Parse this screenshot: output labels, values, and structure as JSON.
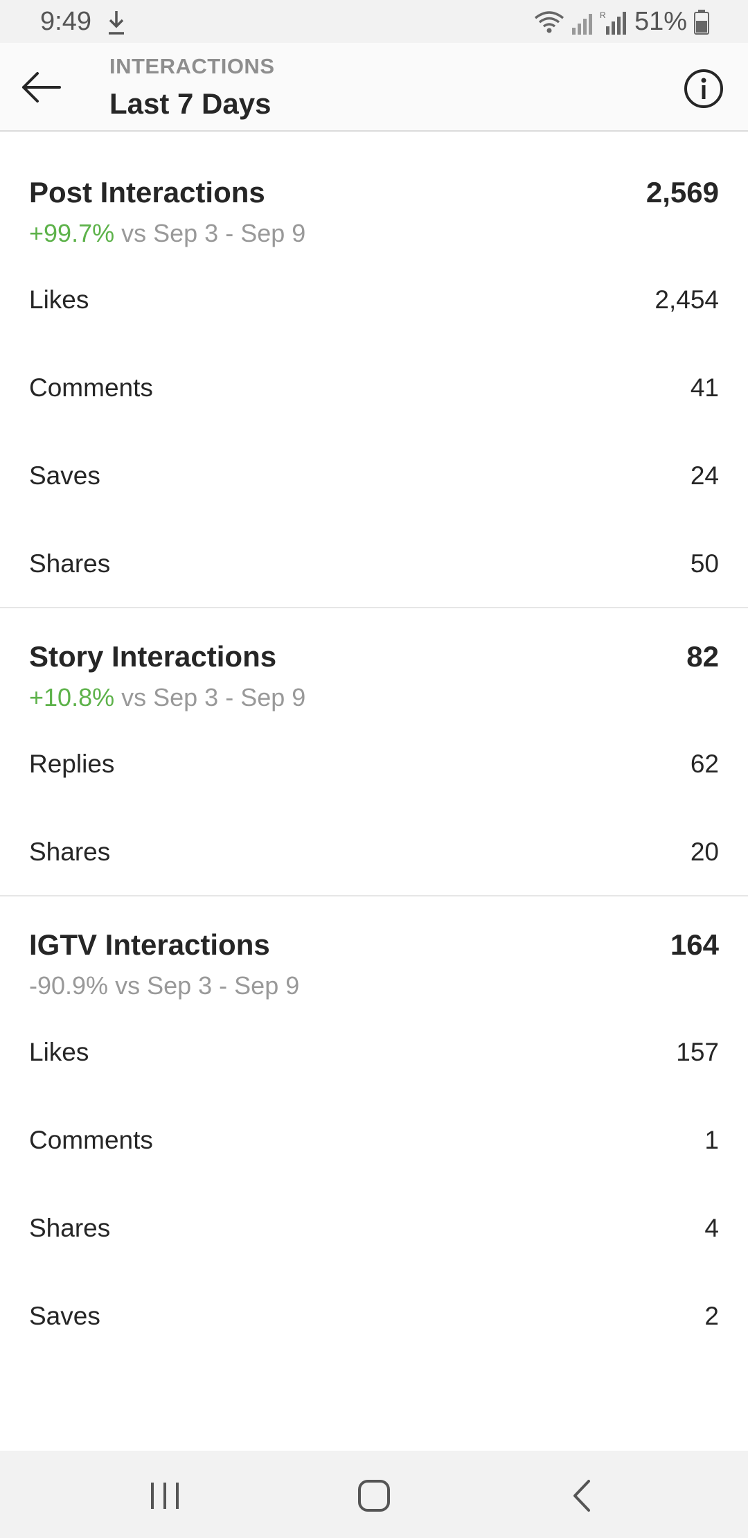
{
  "status_bar": {
    "time": "9:49",
    "battery": "51%"
  },
  "header": {
    "subtitle": "INTERACTIONS",
    "title": "Last 7 Days"
  },
  "sections": {
    "post": {
      "title": "Post Interactions",
      "total": "2,569",
      "change": "+99.7%",
      "compare": "vs Sep 3 - Sep 9",
      "rows": [
        {
          "label": "Likes",
          "value": "2,454"
        },
        {
          "label": "Comments",
          "value": "41"
        },
        {
          "label": "Saves",
          "value": "24"
        },
        {
          "label": "Shares",
          "value": "50"
        }
      ]
    },
    "story": {
      "title": "Story Interactions",
      "total": "82",
      "change": "+10.8%",
      "compare": "vs Sep 3 - Sep 9",
      "rows": [
        {
          "label": "Replies",
          "value": "62"
        },
        {
          "label": "Shares",
          "value": "20"
        }
      ]
    },
    "igtv": {
      "title": "IGTV Interactions",
      "total": "164",
      "change": "-90.9%",
      "compare": "vs Sep 3 - Sep 9",
      "rows": [
        {
          "label": "Likes",
          "value": "157"
        },
        {
          "label": "Comments",
          "value": "1"
        },
        {
          "label": "Shares",
          "value": "4"
        },
        {
          "label": "Saves",
          "value": "2"
        }
      ]
    }
  },
  "colors": {
    "positive": "#5db24a",
    "muted": "#999999"
  }
}
